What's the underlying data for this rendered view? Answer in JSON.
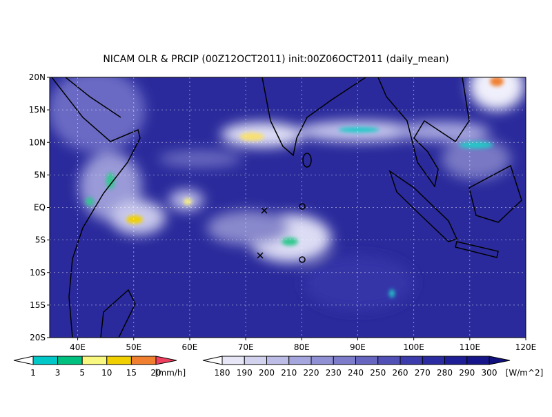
{
  "title": "NICAM OLR & PRCIP (00Z12OCT2011) init:00Z06OCT2011 (daily_mean)",
  "lat_labels": [
    "20N",
    "15N",
    "10N",
    "5N",
    "EQ",
    "5S",
    "10S",
    "15S",
    "20S"
  ],
  "lon_labels": [
    "40E",
    "50E",
    "60E",
    "70E",
    "80E",
    "90E",
    "100E",
    "110E",
    "120E"
  ],
  "precip_colorbar": {
    "labels": [
      "1",
      "3",
      "5",
      "10",
      "15",
      "20"
    ],
    "unit": "[mm/h]"
  },
  "olr_colorbar": {
    "labels": [
      "180",
      "190",
      "200",
      "210",
      "220",
      "230",
      "240",
      "250",
      "260",
      "270",
      "280",
      "290",
      "300"
    ],
    "unit": "[W/m^2]"
  }
}
